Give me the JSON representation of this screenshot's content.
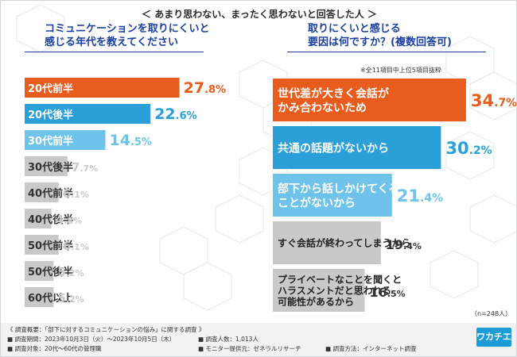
{
  "header": "＜ あまり思わない、まったく思わないと回答した人 ＞",
  "left_title_line1": "コミュニケーションを取りにくいと",
  "left_title_line2": "感じる年代を教えてください",
  "right_title_line1": "取りにくいと感じる",
  "right_title_line2": "要因は何ですか？(複数回答可)",
  "right_note": "※全11項目中上位5項目抜粋",
  "n_note": "（n=248人）",
  "colors": {
    "orange": "#e85c1e",
    "blue": "#2a9fd8",
    "light_blue": "#6fc3ea",
    "gray": "#c9c9c9",
    "title_blue": "#1a3fa0"
  },
  "chart_data": [
    {
      "type": "bar",
      "orientation": "horizontal",
      "title": "コミュニケーションを取りにくいと感じる年代を教えてください",
      "unit": "%",
      "categories": [
        "20代前半",
        "20代後半",
        "30代前半",
        "30代後半",
        "40代前半",
        "40代後半",
        "50代前半",
        "50代後半",
        "60代以上"
      ],
      "values": [
        27.8,
        22.6,
        14.5,
        7.7,
        6.1,
        4.8,
        6.1,
        5.2,
        5.2
      ],
      "value_labels": [
        "27.8",
        "22.6",
        "14.5",
        "7.7",
        "6.1",
        "4.8",
        "6.1",
        "5.2",
        "5.2"
      ],
      "bar_colors": [
        "orange",
        "blue",
        "light_blue",
        "gray",
        "gray",
        "gray",
        "gray",
        "gray",
        "gray"
      ],
      "xlim": [
        0,
        30
      ]
    },
    {
      "type": "bar",
      "orientation": "horizontal",
      "title": "取りにくいと感じる要因は何ですか？(複数回答可)",
      "unit": "%",
      "categories": [
        [
          "世代差が大きく会話が",
          "かみ合わないため"
        ],
        [
          "共通の話題がないから"
        ],
        [
          "部下から話しかけてくる",
          "ことがないから"
        ],
        [
          "すぐ会話が終わってしまうから"
        ],
        [
          "プライベートなことを聞くと",
          "ハラスメントだと思われる",
          "可能性があるから"
        ]
      ],
      "values": [
        34.7,
        30.2,
        21.4,
        19.4,
        16.5
      ],
      "value_labels": [
        "34.7",
        "30.2",
        "21.4",
        "19.4",
        "16.5"
      ],
      "bar_colors": [
        "orange",
        "blue",
        "light_blue",
        "gray",
        "gray"
      ],
      "xlim": [
        0,
        40
      ]
    }
  ],
  "footer": {
    "title": "《 調査概要：「部下に対するコミュニケーションの悩み」に関する調査 》",
    "period": "■ 調査期間：2023年10月3日（火）～2023年10月5日（木）",
    "count": "■ 調査人数：1,013人",
    "target": "■ 調査対象：20代～60代の管理職",
    "provider": "■ モニター提供元：ゼネラルリサーチ",
    "method": "■ 調査方法：インターネット調査"
  },
  "logo": "ワカチエ"
}
